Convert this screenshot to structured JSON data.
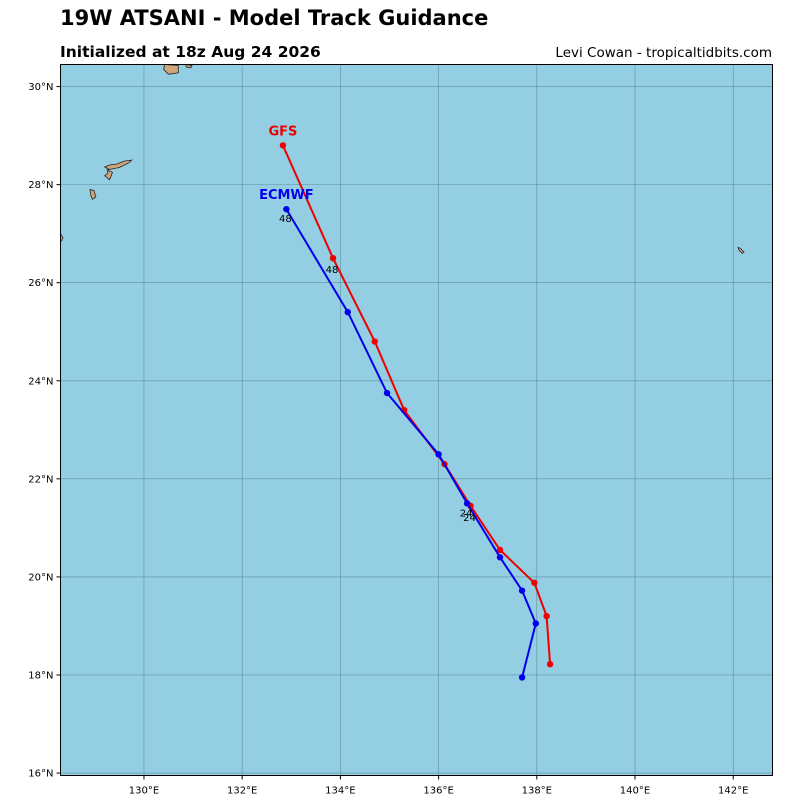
{
  "header": {
    "title": "19W ATSANI - Model Track Guidance",
    "subtitle": "Initialized at 18z Aug 24 2026",
    "credit": "Levi Cowan - tropicaltidbits.com"
  },
  "colors": {
    "ocean": "#94cee3",
    "land": "#cfa57a",
    "grid": "#4f7f8c",
    "gfs": "#ee0000",
    "ecmwf": "#0000ee"
  },
  "map": {
    "lon_range": [
      128.3,
      142.8
    ],
    "lat_range": [
      15.95,
      30.45
    ],
    "lon_ticks": [
      {
        "value": 130,
        "label": "130°E"
      },
      {
        "value": 132,
        "label": "132°E"
      },
      {
        "value": 134,
        "label": "134°E"
      },
      {
        "value": 136,
        "label": "136°E"
      },
      {
        "value": 138,
        "label": "138°E"
      },
      {
        "value": 140,
        "label": "140°E"
      },
      {
        "value": 142,
        "label": "142°E"
      }
    ],
    "lat_ticks": [
      {
        "value": 16,
        "label": "16°N"
      },
      {
        "value": 18,
        "label": "18°N"
      },
      {
        "value": 20,
        "label": "20°N"
      },
      {
        "value": 22,
        "label": "22°N"
      },
      {
        "value": 24,
        "label": "24°N"
      },
      {
        "value": 26,
        "label": "26°N"
      },
      {
        "value": 28,
        "label": "28°N"
      },
      {
        "value": 30,
        "label": "30°N"
      }
    ],
    "islands": [
      {
        "name": "Yakushima area",
        "points": [
          [
            130.42,
            30.45
          ],
          [
            130.7,
            30.43
          ],
          [
            130.7,
            30.28
          ],
          [
            130.5,
            30.25
          ],
          [
            130.4,
            30.35
          ]
        ]
      },
      {
        "name": "Kuchinoerabu",
        "points": [
          [
            130.85,
            30.45
          ],
          [
            130.98,
            30.43
          ],
          [
            130.95,
            30.38
          ],
          [
            130.86,
            30.4
          ]
        ]
      },
      {
        "name": "Amami Oshima",
        "points": [
          [
            129.25,
            28.3
          ],
          [
            129.5,
            28.35
          ],
          [
            129.7,
            28.45
          ],
          [
            129.75,
            28.5
          ],
          [
            129.6,
            28.48
          ],
          [
            129.45,
            28.42
          ],
          [
            129.3,
            28.4
          ],
          [
            129.2,
            28.36
          ],
          [
            129.28,
            28.32
          ],
          [
            129.25,
            28.22
          ],
          [
            129.2,
            28.18
          ],
          [
            129.3,
            28.1
          ],
          [
            129.36,
            28.25
          ]
        ]
      },
      {
        "name": "Tokunoshima",
        "points": [
          [
            128.9,
            27.9
          ],
          [
            128.98,
            27.88
          ],
          [
            129.02,
            27.75
          ],
          [
            128.95,
            27.7
          ],
          [
            128.92,
            27.78
          ]
        ]
      },
      {
        "name": "Okinoerabu edge",
        "points": [
          [
            128.3,
            27.0
          ],
          [
            128.35,
            26.92
          ],
          [
            128.32,
            26.85
          ],
          [
            128.3,
            26.85
          ]
        ]
      },
      {
        "name": "Minamidaito",
        "points": [
          [
            142.1,
            26.72
          ],
          [
            142.15,
            26.7
          ],
          [
            142.22,
            26.62
          ],
          [
            142.18,
            26.6
          ],
          [
            142.12,
            26.66
          ]
        ]
      }
    ]
  },
  "chart_data": {
    "type": "line",
    "title": "19W ATSANI - Model Track Guidance",
    "subtitle": "Initialized at 18z Aug 24 2026",
    "xlabel": "",
    "ylabel": "",
    "xlim": [
      128.3,
      142.8
    ],
    "ylim": [
      15.95,
      30.45
    ],
    "series": [
      {
        "name": "GFS",
        "color": "#ee0000",
        "lon": [
          138.27,
          138.2,
          137.95,
          137.25,
          136.65,
          136.12,
          135.3,
          134.7,
          133.85,
          132.83
        ],
        "lat": [
          18.22,
          19.2,
          19.88,
          20.55,
          21.45,
          22.3,
          23.4,
          24.8,
          26.5,
          28.8
        ],
        "hour_labels": [
          {
            "text": "24",
            "index": 4
          },
          {
            "text": "48",
            "index": 8
          }
        ]
      },
      {
        "name": "ECMWF",
        "color": "#0000ee",
        "lon": [
          137.7,
          137.98,
          137.7,
          137.25,
          136.58,
          136.0,
          134.95,
          134.15,
          132.9
        ],
        "lat": [
          17.95,
          19.05,
          19.72,
          20.4,
          21.5,
          22.5,
          23.75,
          25.4,
          27.5
        ],
        "hour_labels": [
          {
            "text": "24",
            "index": 4
          },
          {
            "text": "48",
            "index": 8
          }
        ]
      }
    ]
  }
}
